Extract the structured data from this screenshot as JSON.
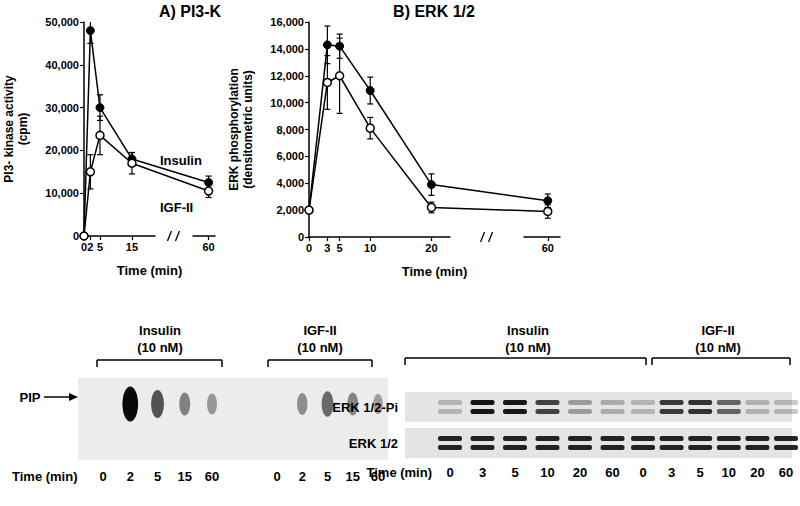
{
  "chart_data": [
    {
      "type": "line",
      "title": "A) PI3-K",
      "xlabel": "Time (min)",
      "ylabel": [
        "PI3- kinase activity",
        "(cpm)"
      ],
      "x": [
        0,
        2,
        5,
        15,
        60
      ],
      "xlim": [
        0,
        62
      ],
      "xticks": [
        0,
        2,
        5,
        15,
        60
      ],
      "xbreak": [
        22,
        55
      ],
      "ylim": [
        0,
        50000
      ],
      "yticks": [
        0,
        10000,
        20000,
        30000,
        40000,
        50000
      ],
      "grid": false,
      "legend": "inline",
      "series": [
        {
          "name": "Insulin",
          "color": "#000000",
          "marker": "filled_circle",
          "values": [
            0,
            48000,
            30000,
            18000,
            12500
          ],
          "errors": [
            0,
            3000,
            3000,
            1500,
            1500
          ]
        },
        {
          "name": "IGF-II",
          "color": "#000000",
          "marker": "open_circle",
          "values": [
            0,
            15000,
            23500,
            17000,
            10500
          ],
          "errors": [
            0,
            4000,
            4500,
            2500,
            1500
          ]
        }
      ]
    },
    {
      "type": "line",
      "title": "B) ERK 1/2",
      "xlabel": "Time (min)",
      "ylabel": [
        "ERK phosphorylation",
        "(densitometric units)"
      ],
      "x": [
        0,
        3,
        5,
        10,
        20,
        60
      ],
      "xlim": [
        0,
        62
      ],
      "xticks": [
        0,
        3,
        5,
        10,
        20,
        60
      ],
      "xbreak": [
        23,
        56
      ],
      "ylim": [
        0,
        16000
      ],
      "yticks": [
        0,
        2000,
        4000,
        6000,
        8000,
        10000,
        12000,
        14000,
        16000
      ],
      "grid": false,
      "series": [
        {
          "name": "Insulin",
          "color": "#000000",
          "marker": "filled_circle",
          "values": [
            2000,
            14300,
            14200,
            10900,
            3900,
            2700
          ],
          "errors": [
            0,
            1400,
            900,
            1000,
            800,
            500
          ]
        },
        {
          "name": "IGF-II",
          "color": "#000000",
          "marker": "open_circle",
          "values": [
            2000,
            11500,
            12000,
            8100,
            2200,
            1900
          ],
          "errors": [
            0,
            2000,
            2800,
            800,
            400,
            500
          ]
        }
      ]
    }
  ],
  "blots": [
    {
      "band_label": "PIP",
      "time_label": "Time (min)",
      "groups": [
        {
          "label": [
            "Insulin",
            "(10 nM)"
          ],
          "lanes": [
            0,
            2,
            5,
            15,
            60
          ]
        },
        {
          "label": [
            "IGF-II",
            "(10 nM)"
          ],
          "lanes": [
            0,
            2,
            5,
            15,
            60
          ]
        }
      ]
    },
    {
      "rows": [
        "ERK 1/2-Pi",
        "ERK 1/2"
      ],
      "time_label": "Time (min)",
      "groups": [
        {
          "label": [
            "Insulin",
            "(10 nM)"
          ],
          "lanes": [
            0,
            3,
            5,
            10,
            20,
            60
          ]
        },
        {
          "label": [
            "IGF-II",
            "(10 nM)"
          ],
          "lanes": [
            0,
            3,
            5,
            10,
            20,
            60
          ]
        }
      ]
    }
  ]
}
